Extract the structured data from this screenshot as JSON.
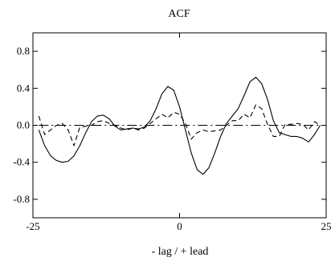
{
  "chart_data": {
    "type": "line",
    "title": "ACF",
    "xlabel": "- lag / + lead",
    "ylabel": "",
    "xlim": [
      -25,
      25
    ],
    "ylim": [
      -1.0,
      1.0
    ],
    "x_ticks": [
      -25,
      0,
      25
    ],
    "x_tick_labels": [
      "-25",
      "0",
      "25"
    ],
    "y_ticks": [
      0.8,
      0.4,
      0.0,
      -0.4,
      -0.8
    ],
    "y_tick_labels": [
      "0.8",
      "0.4",
      "0.0",
      "-0.4",
      "-0.8"
    ],
    "grid": false,
    "series": [
      {
        "style": "solid",
        "color": "#000000",
        "x": [
          -24,
          -23,
          -22,
          -21,
          -20,
          -19,
          -18,
          -17,
          -16,
          -15,
          -14,
          -13,
          -12,
          -11,
          -10,
          -9,
          -8,
          -7,
          -6,
          -5,
          -4,
          -3,
          -2,
          -1,
          0,
          1,
          2,
          3,
          4,
          5,
          6,
          7,
          8,
          9,
          10,
          11,
          12,
          13,
          14,
          15,
          16,
          17,
          18,
          19,
          20,
          21,
          22,
          23,
          24
        ],
        "y": [
          -0.05,
          -0.22,
          -0.33,
          -0.38,
          -0.4,
          -0.39,
          -0.33,
          -0.22,
          -0.08,
          0.04,
          0.1,
          0.11,
          0.07,
          -0.01,
          -0.05,
          -0.04,
          -0.03,
          -0.04,
          -0.02,
          0.05,
          0.18,
          0.34,
          0.42,
          0.38,
          0.2,
          -0.05,
          -0.3,
          -0.48,
          -0.53,
          -0.46,
          -0.3,
          -0.12,
          0.02,
          0.1,
          0.18,
          0.32,
          0.47,
          0.52,
          0.45,
          0.28,
          0.05,
          -0.08,
          -0.1,
          -0.12,
          -0.12,
          -0.14,
          -0.18,
          -0.1,
          0.0
        ]
      },
      {
        "style": "dash",
        "color": "#000000",
        "x": [
          -24,
          -23,
          -22,
          -21,
          -20,
          -19,
          -18,
          -17,
          -16,
          -15,
          -14,
          -13,
          -12,
          -11,
          -10,
          -9,
          -8,
          -7,
          -6,
          -5,
          -4,
          -3,
          -2,
          -1,
          0,
          1,
          2,
          3,
          4,
          5,
          6,
          7,
          8,
          9,
          10,
          11,
          12,
          13,
          14,
          15,
          16,
          17,
          18,
          19,
          20,
          21,
          22,
          23,
          24
        ],
        "y": [
          0.1,
          -0.1,
          -0.05,
          0.0,
          0.02,
          -0.05,
          -0.22,
          -0.02,
          -0.01,
          0.0,
          0.04,
          0.05,
          0.02,
          0.0,
          -0.03,
          -0.05,
          -0.03,
          -0.05,
          -0.03,
          0.02,
          0.07,
          0.12,
          0.08,
          0.14,
          0.12,
          0.02,
          -0.15,
          -0.08,
          -0.05,
          -0.07,
          -0.06,
          -0.05,
          0.0,
          0.05,
          0.05,
          0.12,
          0.08,
          0.22,
          0.18,
          0.01,
          -0.12,
          -0.12,
          0.01,
          0.01,
          0.02,
          0.01,
          -0.05,
          0.04,
          0.0
        ]
      },
      {
        "style": "dashdot",
        "color": "#000000",
        "x": [
          -24,
          24
        ],
        "y": [
          0.0,
          0.0
        ]
      }
    ]
  }
}
